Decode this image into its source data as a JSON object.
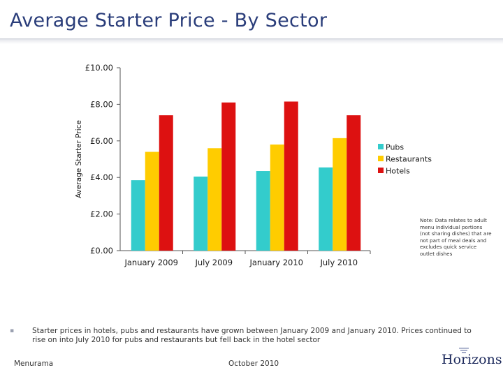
{
  "slide": {
    "title": "Average Starter Price - By Sector",
    "note": "Note: Data relates to adult menu individual portions (not sharing dishes) that are not part of meal deals and excludes quick service outlet dishes",
    "bullet": "Starter prices in hotels, pubs and restaurants have grown between January 2009 and January 2010. Prices continued to rise on into July 2010 for pubs and restaurants but fell back in the hotel sector",
    "footer_left": "Menurama",
    "footer_center": "October 2010",
    "logo_text": "Horizons"
  },
  "chart_data": {
    "type": "bar",
    "title": "",
    "xlabel": "",
    "ylabel": "Average Starter Price",
    "ylim": [
      0,
      10
    ],
    "yticks": [
      0,
      2,
      4,
      6,
      8,
      10
    ],
    "ytick_labels": [
      "£0.00",
      "£2.00",
      "£4.00",
      "£6.00",
      "£8.00",
      "£10.00"
    ],
    "categories": [
      "January 2009",
      "July 2009",
      "January 2010",
      "July 2010"
    ],
    "series": [
      {
        "name": "Pubs",
        "color": "#33cccc",
        "values": [
          3.85,
          4.05,
          4.35,
          4.55
        ]
      },
      {
        "name": "Restaurants",
        "color": "#ffcc00",
        "values": [
          5.4,
          5.6,
          5.8,
          6.15
        ]
      },
      {
        "name": "Hotels",
        "color": "#dd1111",
        "values": [
          7.4,
          8.1,
          8.15,
          7.4
        ]
      }
    ],
    "legend_position": "right",
    "grid": false
  }
}
